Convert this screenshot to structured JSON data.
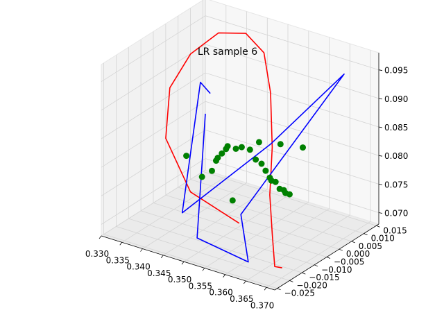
{
  "chart_data": {
    "type": "scatter",
    "projection": "3d",
    "title": "LR sample 6",
    "xlabel": "",
    "ylabel": "",
    "zlabel": "",
    "grid": true,
    "xlim": [
      0.33,
      0.372
    ],
    "ylim": [
      -0.026,
      0.016
    ],
    "zlim": [
      0.068,
      0.098
    ],
    "x_ticks": [
      "0.330",
      "0.335",
      "0.340",
      "0.345",
      "0.350",
      "0.355",
      "0.360",
      "0.365",
      "0.370"
    ],
    "y_ticks": [
      "−0.025",
      "−0.020",
      "−0.015",
      "−0.010",
      "−0.005",
      "0.000",
      "0.005",
      "0.010",
      "0.015"
    ],
    "z_ticks": [
      "0.070",
      "0.075",
      "0.080",
      "0.085",
      "0.090",
      "0.095"
    ],
    "colors": {
      "curve": "#ff0000",
      "path": "#0000ff",
      "points": "#008000"
    },
    "series": [
      {
        "kind": "line",
        "color": "red",
        "x": [
          0.355,
          0.342,
          0.333,
          0.331,
          0.333,
          0.338,
          0.344,
          0.349,
          0.353,
          0.357,
          0.36,
          0.363,
          0.366,
          0.369
        ],
        "y": [
          -0.012,
          -0.01,
          -0.005,
          0.0,
          0.005,
          0.008,
          0.009,
          0.008,
          0.004,
          -0.002,
          -0.008,
          -0.012,
          -0.016,
          -0.018
        ],
        "z": [
          0.072,
          0.074,
          0.08,
          0.087,
          0.092,
          0.096,
          0.097,
          0.095,
          0.09,
          0.083,
          0.077,
          0.072,
          0.068,
          0.069
        ]
      },
      {
        "kind": "line",
        "color": "blue",
        "x": [
          0.339,
          0.349,
          0.362,
          0.353,
          0.366,
          0.353,
          0.346,
          0.336,
          0.339
        ],
        "y": [
          0.001,
          -0.019,
          -0.02,
          -0.008,
          0.012,
          0.004,
          -0.02,
          0.004,
          0.003
        ],
        "z": [
          0.084,
          0.07,
          0.069,
          0.072,
          0.094,
          0.081,
          0.074,
          0.088,
          0.087
        ]
      },
      {
        "kind": "scatter",
        "color": "green",
        "x": [
          0.335,
          0.34,
          0.343,
          0.344,
          0.345,
          0.346,
          0.347,
          0.348,
          0.35,
          0.352,
          0.354,
          0.356,
          0.358,
          0.359,
          0.36,
          0.361,
          0.362,
          0.363,
          0.364,
          0.365,
          0.366,
          0.351,
          0.355,
          0.359,
          0.362
        ],
        "y": [
          0.0,
          -0.002,
          -0.003,
          -0.003,
          -0.004,
          -0.004,
          -0.004,
          -0.005,
          -0.005,
          -0.006,
          -0.006,
          -0.007,
          -0.008,
          -0.008,
          -0.008,
          -0.009,
          -0.009,
          -0.009,
          -0.009,
          -0.01,
          -0.01,
          -0.008,
          -0.004,
          -0.002,
          0.002
        ],
        "z": [
          0.076,
          0.074,
          0.076,
          0.078,
          0.079,
          0.08,
          0.081,
          0.082,
          0.082,
          0.083,
          0.083,
          0.082,
          0.082,
          0.081,
          0.08,
          0.08,
          0.08,
          0.079,
          0.079,
          0.079,
          0.079,
          0.074,
          0.084,
          0.084,
          0.083
        ]
      }
    ]
  }
}
